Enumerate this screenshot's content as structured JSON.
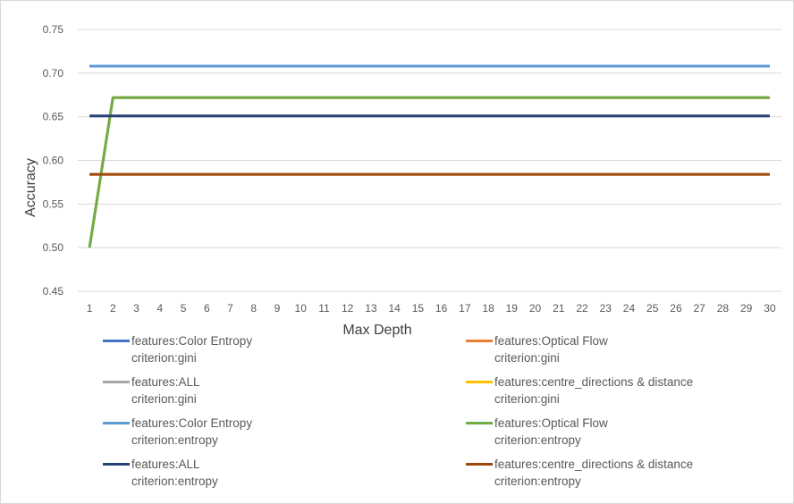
{
  "chart_data": {
    "type": "line",
    "title": "",
    "xlabel": "Max Depth",
    "ylabel": "Accuracy",
    "ylim": [
      0.45,
      0.75
    ],
    "yticks": [
      "0.45",
      "0.50",
      "0.55",
      "0.60",
      "0.65",
      "0.70",
      "0.75"
    ],
    "categories": [
      "1",
      "2",
      "3",
      "4",
      "5",
      "6",
      "7",
      "8",
      "9",
      "10",
      "11",
      "12",
      "13",
      "14",
      "15",
      "16",
      "17",
      "18",
      "19",
      "20",
      "21",
      "22",
      "23",
      "24",
      "25",
      "26",
      "27",
      "28",
      "29",
      "30"
    ],
    "grid": true,
    "legend_position": "bottom",
    "series": [
      {
        "name_line1": "features:Color Entropy",
        "name_line2": "criterion:gini",
        "color": "#4472C4",
        "values": [
          0.708,
          0.708,
          0.708,
          0.708,
          0.708,
          0.708,
          0.708,
          0.708,
          0.708,
          0.708,
          0.708,
          0.708,
          0.708,
          0.708,
          0.708,
          0.708,
          0.708,
          0.708,
          0.708,
          0.708,
          0.708,
          0.708,
          0.708,
          0.708,
          0.708,
          0.708,
          0.708,
          0.708,
          0.708,
          0.708
        ]
      },
      {
        "name_line1": "features:Optical Flow",
        "name_line2": "criterion:gini",
        "color": "#ED7D31",
        "values": [
          0.5,
          0.672,
          0.672,
          0.672,
          0.672,
          0.672,
          0.672,
          0.672,
          0.672,
          0.672,
          0.672,
          0.672,
          0.672,
          0.672,
          0.672,
          0.672,
          0.672,
          0.672,
          0.672,
          0.672,
          0.672,
          0.672,
          0.672,
          0.672,
          0.672,
          0.672,
          0.672,
          0.672,
          0.672,
          0.672
        ]
      },
      {
        "name_line1": "features:ALL",
        "name_line2": "criterion:gini",
        "color": "#A5A5A5",
        "values": [
          0.651,
          0.651,
          0.651,
          0.651,
          0.651,
          0.651,
          0.651,
          0.651,
          0.651,
          0.651,
          0.651,
          0.651,
          0.651,
          0.651,
          0.651,
          0.651,
          0.651,
          0.651,
          0.651,
          0.651,
          0.651,
          0.651,
          0.651,
          0.651,
          0.651,
          0.651,
          0.651,
          0.651,
          0.651,
          0.651
        ]
      },
      {
        "name_line1": "features:centre_directions & distance",
        "name_line2": "criterion:gini",
        "color": "#FFC000",
        "values": [
          0.584,
          0.584,
          0.584,
          0.584,
          0.584,
          0.584,
          0.584,
          0.584,
          0.584,
          0.584,
          0.584,
          0.584,
          0.584,
          0.584,
          0.584,
          0.584,
          0.584,
          0.584,
          0.584,
          0.584,
          0.584,
          0.584,
          0.584,
          0.584,
          0.584,
          0.584,
          0.584,
          0.584,
          0.584,
          0.584
        ]
      },
      {
        "name_line1": "features:Color Entropy",
        "name_line2": "criterion:entropy",
        "color": "#5B9BD5",
        "values": [
          0.708,
          0.708,
          0.708,
          0.708,
          0.708,
          0.708,
          0.708,
          0.708,
          0.708,
          0.708,
          0.708,
          0.708,
          0.708,
          0.708,
          0.708,
          0.708,
          0.708,
          0.708,
          0.708,
          0.708,
          0.708,
          0.708,
          0.708,
          0.708,
          0.708,
          0.708,
          0.708,
          0.708,
          0.708,
          0.708
        ]
      },
      {
        "name_line1": "features:Optical Flow",
        "name_line2": "criterion:entropy",
        "color": "#70AD47",
        "values": [
          0.5,
          0.672,
          0.672,
          0.672,
          0.672,
          0.672,
          0.672,
          0.672,
          0.672,
          0.672,
          0.672,
          0.672,
          0.672,
          0.672,
          0.672,
          0.672,
          0.672,
          0.672,
          0.672,
          0.672,
          0.672,
          0.672,
          0.672,
          0.672,
          0.672,
          0.672,
          0.672,
          0.672,
          0.672,
          0.672
        ]
      },
      {
        "name_line1": "features:ALL",
        "name_line2": "criterion:entropy",
        "color": "#264478",
        "values": [
          0.651,
          0.651,
          0.651,
          0.651,
          0.651,
          0.651,
          0.651,
          0.651,
          0.651,
          0.651,
          0.651,
          0.651,
          0.651,
          0.651,
          0.651,
          0.651,
          0.651,
          0.651,
          0.651,
          0.651,
          0.651,
          0.651,
          0.651,
          0.651,
          0.651,
          0.651,
          0.651,
          0.651,
          0.651,
          0.651
        ]
      },
      {
        "name_line1": "features:centre_directions & distance",
        "name_line2": "criterion:entropy",
        "color": "#9E480E",
        "values": [
          0.584,
          0.584,
          0.584,
          0.584,
          0.584,
          0.584,
          0.584,
          0.584,
          0.584,
          0.584,
          0.584,
          0.584,
          0.584,
          0.584,
          0.584,
          0.584,
          0.584,
          0.584,
          0.584,
          0.584,
          0.584,
          0.584,
          0.584,
          0.584,
          0.584,
          0.584,
          0.584,
          0.584,
          0.584,
          0.584
        ]
      }
    ]
  }
}
